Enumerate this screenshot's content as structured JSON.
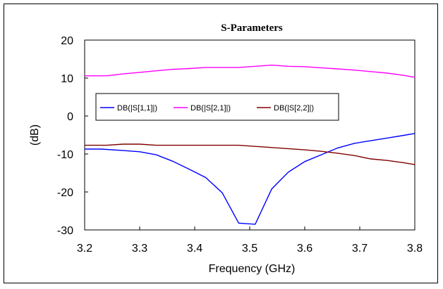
{
  "chart_data": {
    "type": "line",
    "title": "S-Parameters",
    "xlabel": "Frequency (GHz)",
    "ylabel": "(dB)",
    "xlim": [
      3.2,
      3.8
    ],
    "ylim": [
      -30,
      20
    ],
    "x_ticks": [
      "3.2",
      "3.3",
      "3.4",
      "3.5",
      "3.6",
      "3.7",
      "3.8"
    ],
    "y_ticks": [
      "20",
      "10",
      "0",
      "-10",
      "-20",
      "-30"
    ],
    "grid": false,
    "legend_position": "middle-left",
    "series": [
      {
        "name": "DB(|S[1,1]|)",
        "color": "#0000ff",
        "x": [
          3.2,
          3.23,
          3.27,
          3.3,
          3.33,
          3.36,
          3.39,
          3.42,
          3.45,
          3.48,
          3.51,
          3.54,
          3.57,
          3.6,
          3.63,
          3.66,
          3.69,
          3.72,
          3.75,
          3.78,
          3.8
        ],
        "y": [
          -8.7,
          -8.7,
          -9.1,
          -9.4,
          -10.2,
          -11.9,
          -14.0,
          -16.2,
          -20.2,
          -28.2,
          -28.5,
          -19.2,
          -14.8,
          -12.0,
          -10.2,
          -8.4,
          -7.2,
          -6.5,
          -5.8,
          -5.1,
          -4.6
        ]
      },
      {
        "name": "DB(|S[2,1]|)",
        "color": "#ff00ff",
        "x": [
          3.2,
          3.24,
          3.27,
          3.3,
          3.33,
          3.36,
          3.39,
          3.42,
          3.45,
          3.48,
          3.51,
          3.54,
          3.57,
          3.6,
          3.63,
          3.66,
          3.69,
          3.72,
          3.75,
          3.78,
          3.8
        ],
        "y": [
          10.6,
          10.6,
          11.1,
          11.5,
          11.9,
          12.3,
          12.5,
          12.8,
          12.8,
          12.8,
          13.1,
          13.4,
          13.1,
          13.0,
          12.7,
          12.4,
          12.1,
          11.7,
          11.3,
          10.7,
          10.2
        ]
      },
      {
        "name": "DB(|S[2,2]|)",
        "color": "#800000",
        "x": [
          3.2,
          3.24,
          3.27,
          3.3,
          3.33,
          3.36,
          3.39,
          3.42,
          3.45,
          3.48,
          3.51,
          3.54,
          3.57,
          3.6,
          3.63,
          3.66,
          3.69,
          3.72,
          3.75,
          3.78,
          3.8
        ],
        "y": [
          -7.7,
          -7.7,
          -7.4,
          -7.4,
          -7.7,
          -7.7,
          -7.7,
          -7.7,
          -7.7,
          -7.7,
          -8.0,
          -8.3,
          -8.6,
          -8.9,
          -9.3,
          -9.8,
          -10.4,
          -11.3,
          -11.7,
          -12.3,
          -12.8
        ]
      }
    ]
  }
}
